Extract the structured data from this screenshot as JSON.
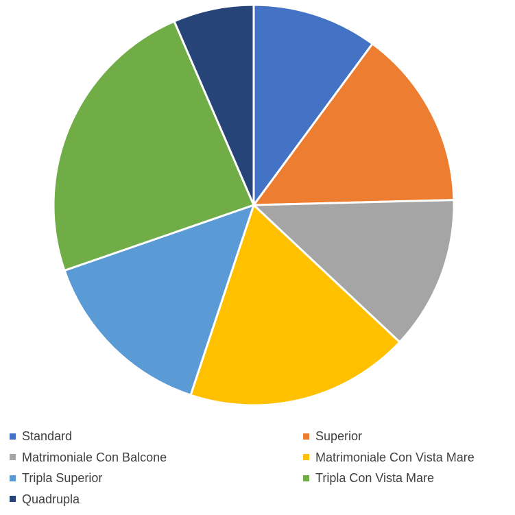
{
  "chart_data": {
    "type": "pie",
    "categories": [
      "Standard",
      "Superior",
      "Matrimoniale Con Balcone",
      "Matrimoniale Con Vista Mare",
      "Tripla Superior",
      "Tripla Con Vista Mare",
      "Quadrupla"
    ],
    "values": [
      10.1,
      14.5,
      12.4,
      18.1,
      14.6,
      23.8,
      6.5
    ],
    "colors": [
      "#4472C4",
      "#ED7D31",
      "#A5A5A5",
      "#FFC000",
      "#5B9BD5",
      "#70AD47",
      "#264478"
    ],
    "start_angle_deg": 0,
    "direction": "clockwise",
    "legend_position": "bottom",
    "slice_border_color": "#ffffff"
  }
}
